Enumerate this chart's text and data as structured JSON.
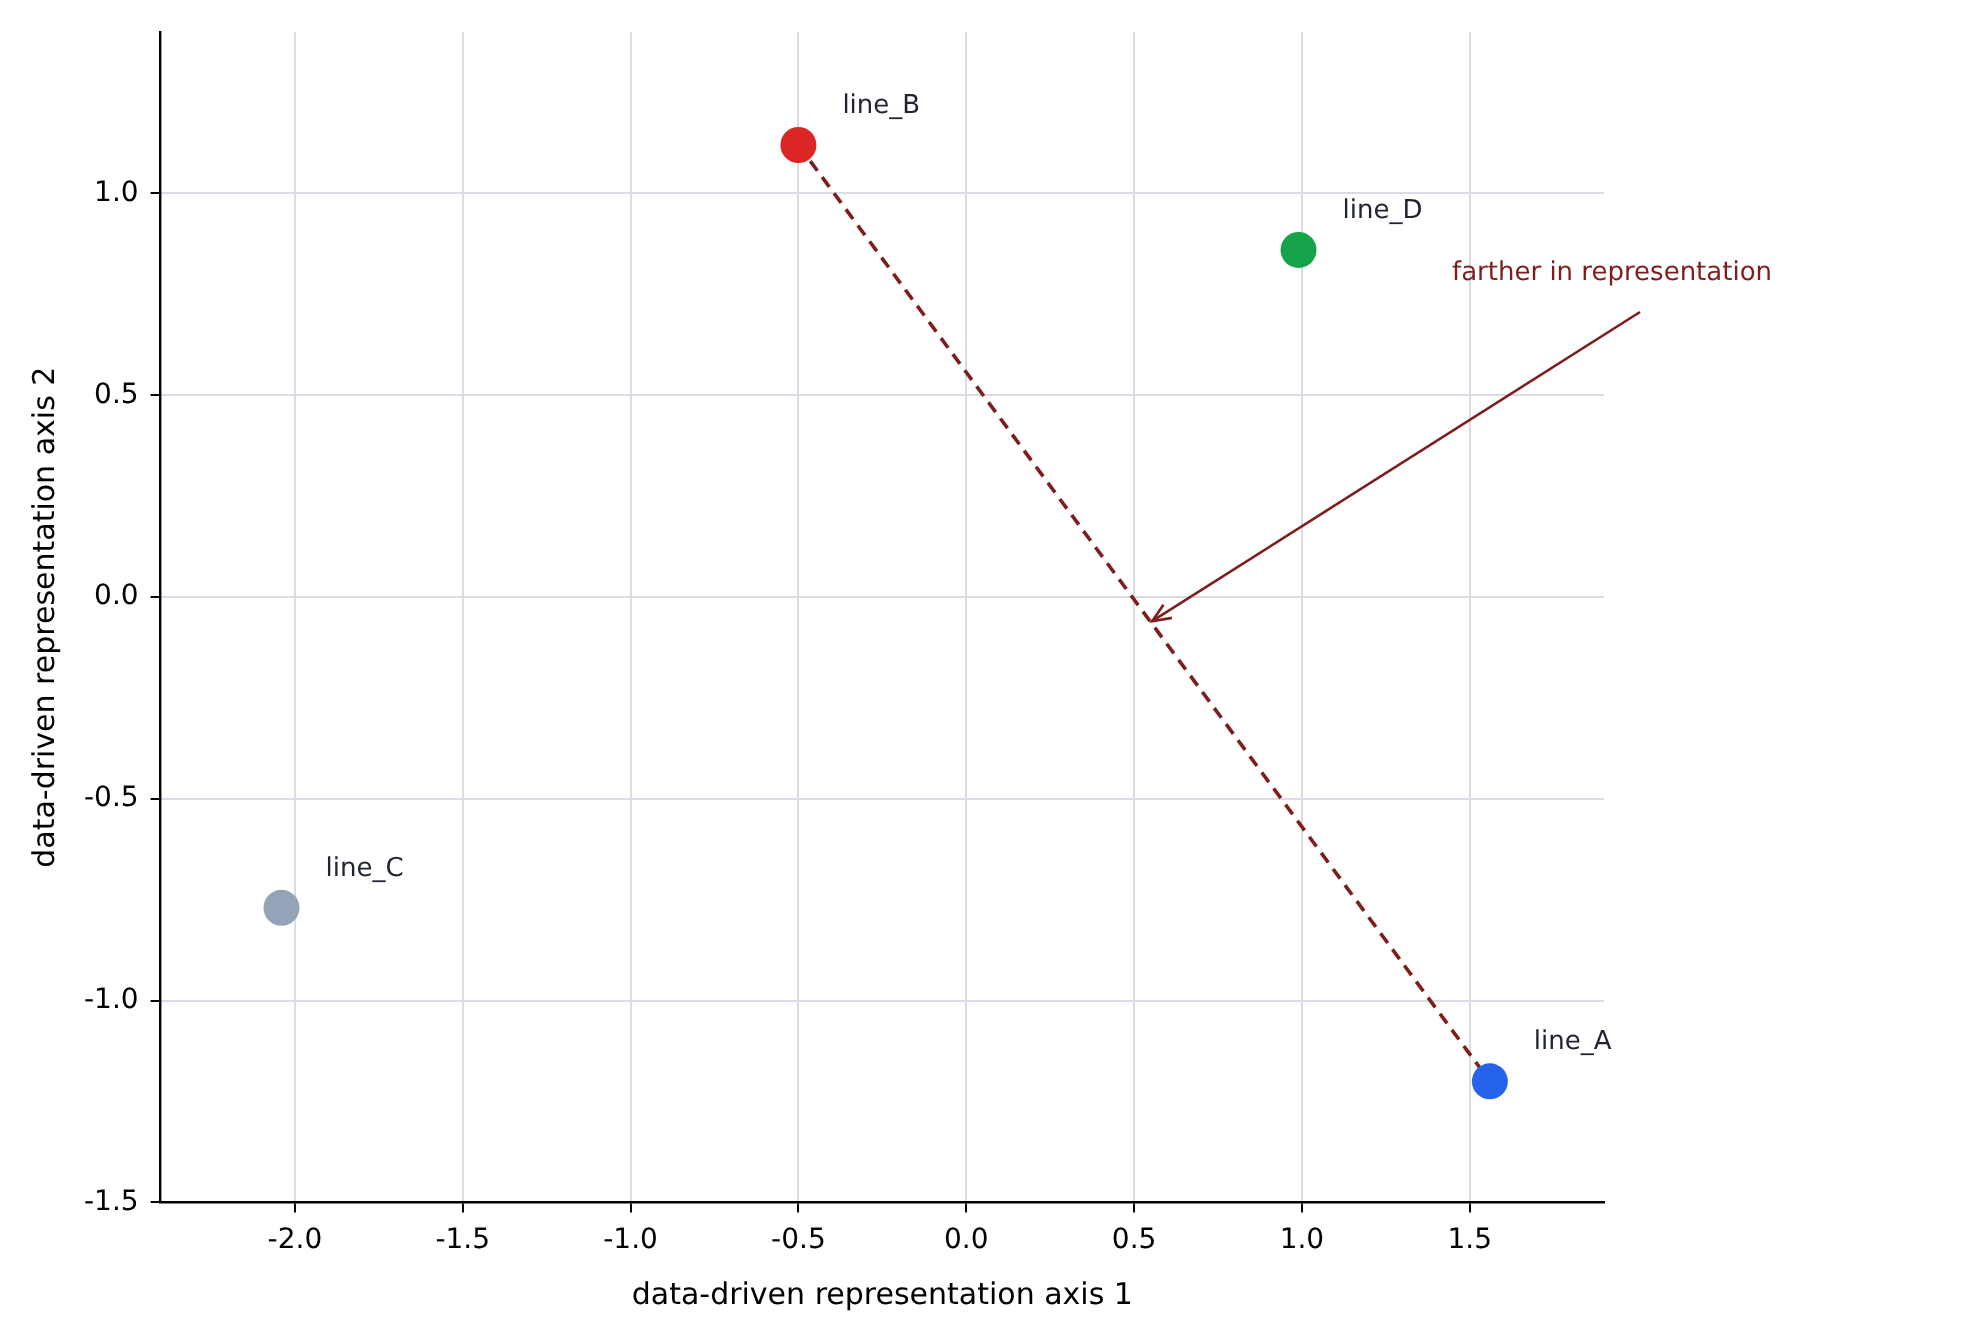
{
  "chart_data": {
    "type": "scatter",
    "xlabel": "data-driven representation axis 1",
    "ylabel": "data-driven representation axis 2",
    "series": [
      {
        "type": "line",
        "color": "#7f1d1d",
        "line_style": "dashed",
        "marker": "none",
        "x": [
          -0.5,
          1.56
        ],
        "values": [
          1.12,
          -1.2
        ]
      },
      {
        "name": "line_A",
        "color": "#2563eb",
        "marker": "circle",
        "x": [
          1.56
        ],
        "values": [
          -1.2
        ]
      },
      {
        "name": "line_B",
        "color": "#dc2626",
        "marker": "circle",
        "x": [
          -0.5
        ],
        "values": [
          1.12
        ]
      },
      {
        "name": "line_C",
        "color": "#94a3b8",
        "marker": "circle",
        "x": [
          -2.04
        ],
        "values": [
          -0.77
        ]
      },
      {
        "name": "line_D",
        "color": "#16a34a",
        "marker": "circle",
        "x": [
          0.99
        ],
        "values": [
          0.86
        ]
      }
    ],
    "annotations": [
      "farther in representation"
    ],
    "xlim": [
      -2.4,
      1.9
    ],
    "ylim": [
      -1.5,
      1.4
    ],
    "xticks": [
      {
        "value": -2,
        "label": "-2.0"
      },
      {
        "value": -1.5,
        "label": "-1.5"
      },
      {
        "value": -1,
        "label": "-1.0"
      },
      {
        "value": -0.5,
        "label": "-0.5"
      },
      {
        "value": 0,
        "label": "0.0"
      },
      {
        "value": 0.5,
        "label": "0.5"
      },
      {
        "value": 1,
        "label": "1.0"
      },
      {
        "value": 1.5,
        "label": "1.5"
      }
    ],
    "yticks": [
      {
        "value": -1.5,
        "label": "-1.5"
      },
      {
        "value": -1,
        "label": "-1.0"
      },
      {
        "value": -0.5,
        "label": "-0.5"
      },
      {
        "value": 0,
        "label": "0.0"
      },
      {
        "value": 0.5,
        "label": "0.5"
      },
      {
        "value": 1,
        "label": "1.0"
      }
    ],
    "grid": true,
    "legend": false
  }
}
